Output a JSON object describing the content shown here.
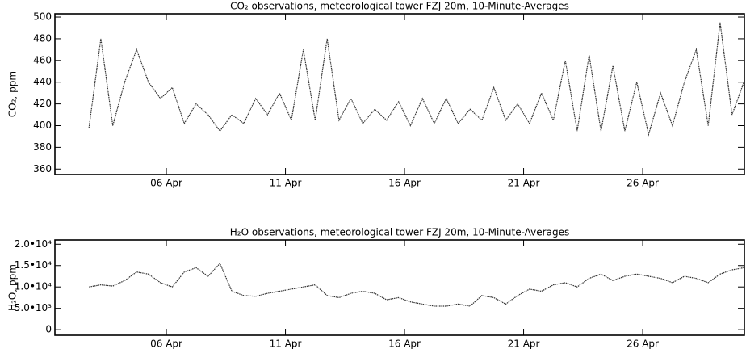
{
  "chart_data": [
    {
      "type": "line",
      "title": "CO₂ observations, meteorological tower FZJ 20m, 10-Minute-Averages",
      "y_label": "CO₂, ppm",
      "x": [
        2.75,
        3.25,
        3.75,
        4.25,
        4.75,
        5.25,
        5.75,
        6.25,
        6.75,
        7.25,
        7.75,
        8.25,
        8.75,
        9.25,
        9.75,
        10.25,
        10.75,
        11.25,
        11.75,
        12.25,
        12.75,
        13.25,
        13.75,
        14.25,
        14.75,
        15.25,
        15.75,
        16.25,
        16.75,
        17.25,
        17.75,
        18.25,
        18.75,
        19.25,
        19.75,
        20.25,
        20.75,
        21.25,
        21.75,
        22.25,
        22.75,
        23.25,
        23.75,
        24.25,
        24.75,
        25.25,
        25.75,
        26.25,
        26.75,
        27.25,
        27.75,
        28.25,
        28.75,
        29.25,
        29.75,
        30.25
      ],
      "series": [
        {
          "name": "CO₂",
          "color": "#333333",
          "values": [
            398,
            480,
            400,
            440,
            470,
            440,
            425,
            435,
            402,
            420,
            410,
            395,
            410,
            402,
            425,
            410,
            430,
            405,
            470,
            405,
            480,
            405,
            425,
            402,
            415,
            405,
            422,
            400,
            425,
            402,
            425,
            402,
            415,
            405,
            435,
            405,
            420,
            402,
            430,
            405,
            460,
            395,
            465,
            395,
            455,
            395,
            440,
            392,
            430,
            400,
            440,
            470,
            400,
            495,
            410,
            440
          ]
        }
      ],
      "xlim": [
        1.32,
        30.27
      ],
      "xticks": [
        {
          "value": 6,
          "label": "06 Apr"
        },
        {
          "value": 11,
          "label": "11 Apr"
        },
        {
          "value": 16,
          "label": "16 Apr"
        },
        {
          "value": 21,
          "label": "21 Apr"
        },
        {
          "value": 26,
          "label": "26 Apr"
        }
      ],
      "ylim": [
        355,
        503
      ],
      "yticks": [
        360,
        380,
        400,
        420,
        440,
        460,
        480,
        500
      ]
    },
    {
      "type": "line",
      "title": "H₂O observations, meteorological tower FZJ 20m, 10-Minute-Averages",
      "y_label": "H₂O, ppm",
      "x": [
        2.75,
        3.25,
        3.75,
        4.25,
        4.75,
        5.25,
        5.75,
        6.25,
        6.75,
        7.25,
        7.75,
        8.25,
        8.75,
        9.25,
        9.75,
        10.25,
        10.75,
        11.25,
        11.75,
        12.25,
        12.75,
        13.25,
        13.75,
        14.25,
        14.75,
        15.25,
        15.75,
        16.25,
        16.75,
        17.25,
        17.75,
        18.25,
        18.75,
        19.25,
        19.75,
        20.25,
        20.75,
        21.25,
        21.75,
        22.25,
        22.75,
        23.25,
        23.75,
        24.25,
        24.75,
        25.25,
        25.75,
        26.25,
        26.75,
        27.25,
        27.75,
        28.25,
        28.75,
        29.25,
        29.75,
        30.25
      ],
      "series": [
        {
          "name": "H₂O",
          "color": "#333333",
          "values": [
            10000,
            10500,
            10200,
            11500,
            13500,
            13000,
            11000,
            10000,
            13500,
            14500,
            12500,
            15500,
            9000,
            8000,
            7800,
            8500,
            9000,
            9500,
            10000,
            10500,
            8000,
            7500,
            8500,
            9000,
            8500,
            7000,
            7500,
            6500,
            6000,
            5500,
            5500,
            6000,
            5500,
            8000,
            7500,
            6000,
            8000,
            9500,
            9000,
            10500,
            11000,
            10000,
            12000,
            13000,
            11500,
            12500,
            13000,
            12500,
            12000,
            11000,
            12500,
            12000,
            11000,
            13000,
            14000,
            14500
          ]
        }
      ],
      "xlim": [
        1.32,
        30.27
      ],
      "xticks": [
        {
          "value": 6,
          "label": "06 Apr"
        },
        {
          "value": 11,
          "label": "11 Apr"
        },
        {
          "value": 16,
          "label": "16 Apr"
        },
        {
          "value": 21,
          "label": "21 Apr"
        },
        {
          "value": 26,
          "label": "26 Apr"
        }
      ],
      "ylim": [
        -1300,
        21000
      ],
      "yticks": [
        0,
        {
          "value": 5000,
          "label": "5.0•10³"
        },
        {
          "value": 10000,
          "label": "1.0•10⁴"
        },
        {
          "value": 15000,
          "label": "1.5•10⁴"
        },
        {
          "value": 20000,
          "label": "2.0•10⁴"
        }
      ]
    }
  ]
}
